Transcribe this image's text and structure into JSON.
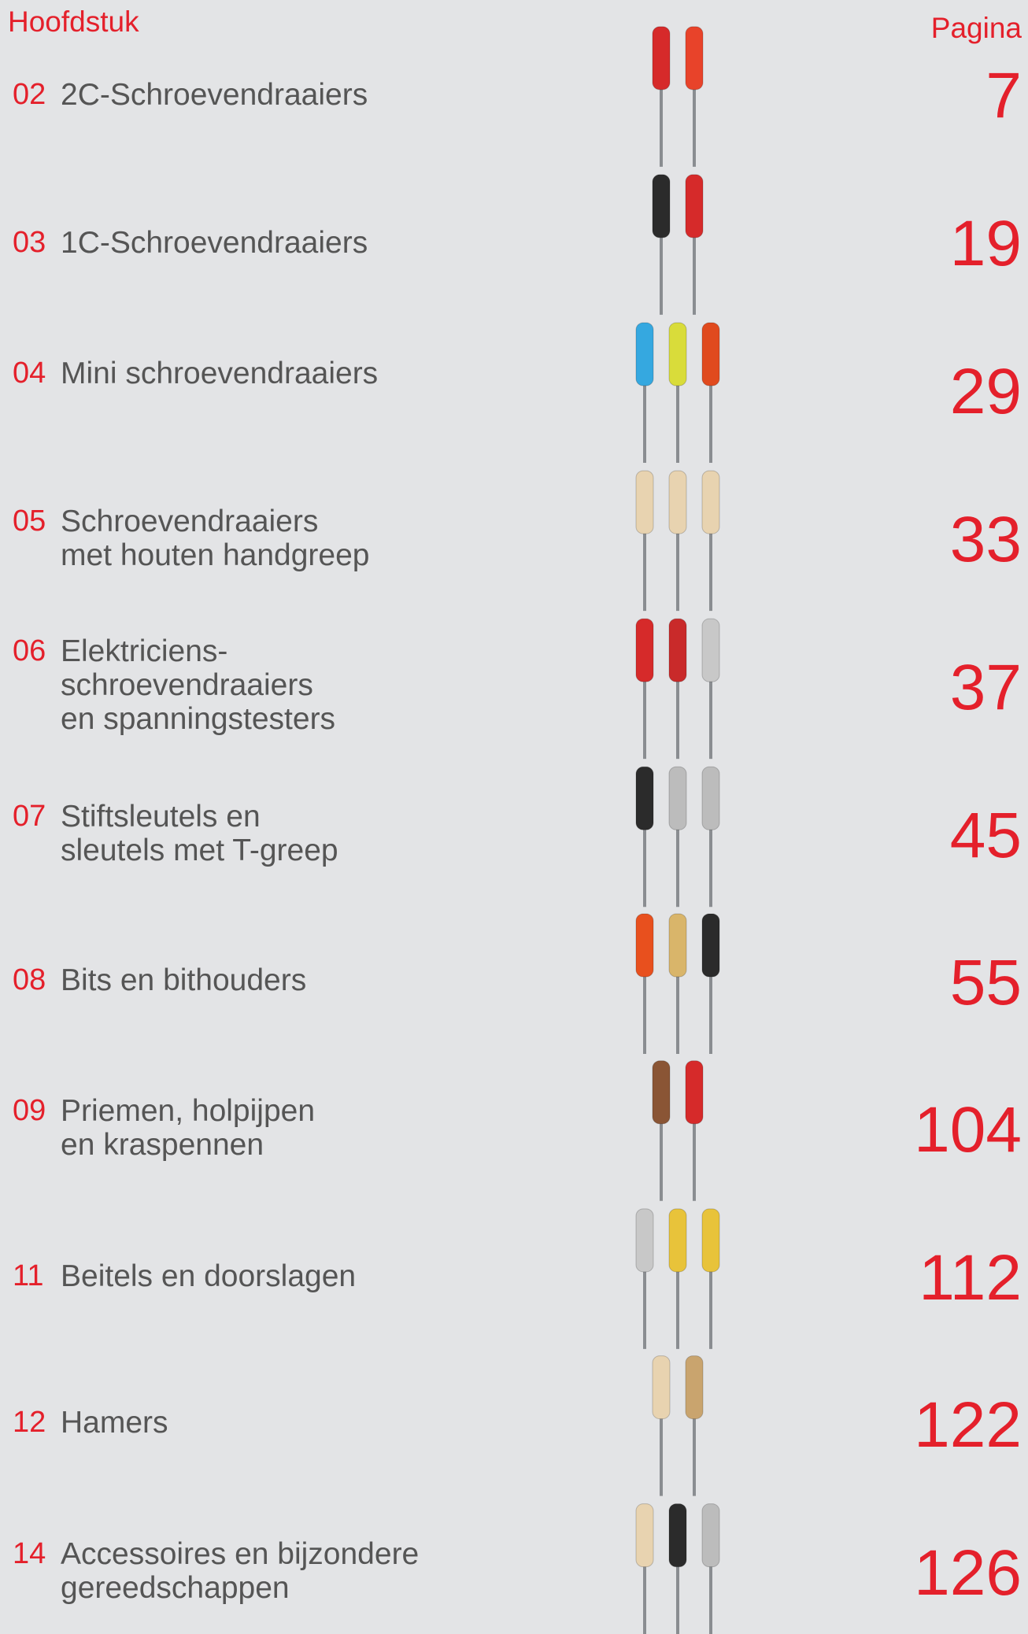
{
  "header": {
    "chapter": "Hoofdstuk",
    "page": "Pagina"
  },
  "entries": [
    {
      "number": "02",
      "title": [
        "2C-Schroevendraaiers"
      ],
      "page": 7
    },
    {
      "number": "03",
      "title": [
        "1C-Schroevendraaiers"
      ],
      "page": 19
    },
    {
      "number": "04",
      "title": [
        "Mini schroevendraaiers"
      ],
      "page": 29
    },
    {
      "number": "05",
      "title": [
        "Schroevendraaiers",
        "met houten handgreep"
      ],
      "page": 33
    },
    {
      "number": "06",
      "title": [
        "Elektriciens-",
        "schroevendraaiers",
        "en spanningstesters"
      ],
      "page": 37
    },
    {
      "number": "07",
      "title": [
        "Stiftsleutels en",
        "sleutels met T-greep"
      ],
      "page": 45
    },
    {
      "number": "08",
      "title": [
        "Bits en bithouders"
      ],
      "page": 55
    },
    {
      "number": "09",
      "title": [
        "Priemen, holpijpen",
        "en kraspennen"
      ],
      "page": 104
    },
    {
      "number": "11",
      "title": [
        "Beitels en doorslagen"
      ],
      "page": 112
    },
    {
      "number": "12",
      "title": [
        "Hamers"
      ],
      "page": 122
    },
    {
      "number": "14",
      "title": [
        "Accessoires en bijzondere",
        "gereedschappen"
      ],
      "page": 126
    }
  ]
}
